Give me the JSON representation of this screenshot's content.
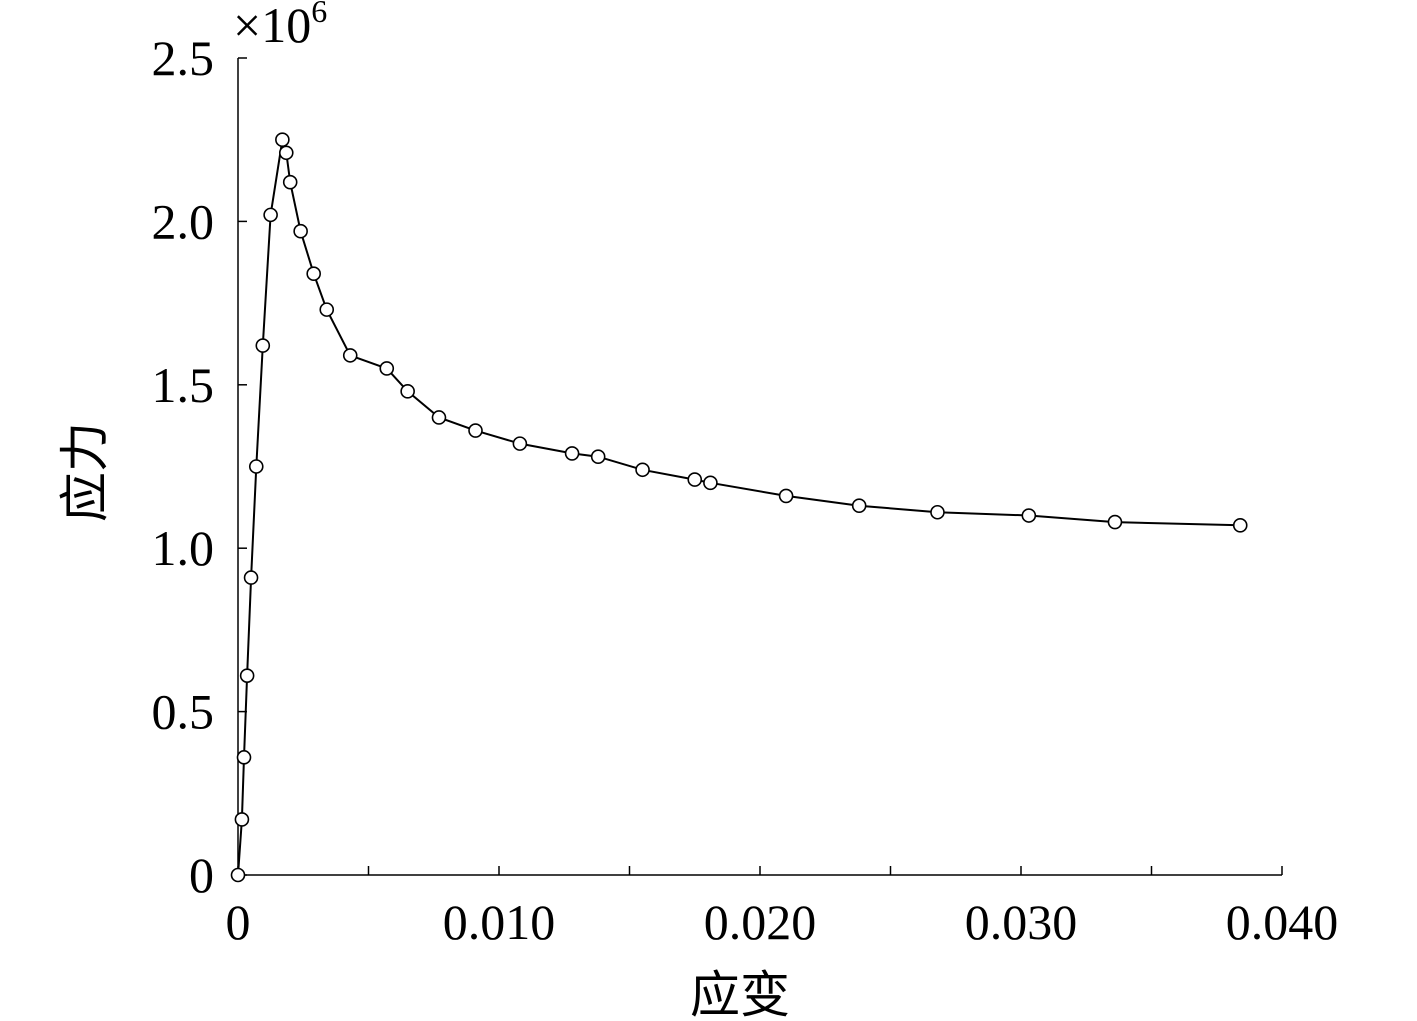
{
  "chart_data": {
    "type": "line",
    "title": "",
    "xlabel": "应变",
    "ylabel": "应力",
    "xlim": [
      0,
      0.04
    ],
    "ylim": [
      0,
      2.5
    ],
    "y_multiplier": "×10",
    "y_multiplier_exponent": "6",
    "x_ticks": [
      0,
      0.005,
      0.01,
      0.015,
      0.02,
      0.025,
      0.03,
      0.035,
      0.04
    ],
    "x_tick_labels": [
      {
        "value": 0,
        "label": "0"
      },
      {
        "value": 0.01,
        "label": "0.010"
      },
      {
        "value": 0.02,
        "label": "0.020"
      },
      {
        "value": 0.03,
        "label": "0.030"
      },
      {
        "value": 0.04,
        "label": "0.040"
      }
    ],
    "y_ticks": [
      0,
      0.5,
      1.0,
      1.5,
      2.0,
      2.5
    ],
    "y_tick_labels": [
      {
        "value": 0,
        "label": "0"
      },
      {
        "value": 0.5,
        "label": "0.5"
      },
      {
        "value": 1.0,
        "label": "1.0"
      },
      {
        "value": 1.5,
        "label": "1.5"
      },
      {
        "value": 2.0,
        "label": "2.0"
      },
      {
        "value": 2.5,
        "label": "2.5"
      }
    ],
    "grid": false,
    "marker": "open-circle",
    "line_color": "#000000",
    "series": [
      {
        "x": [
          0,
          0.00015,
          0.00023,
          0.00035,
          0.0005,
          0.0007,
          0.00095,
          0.00125,
          0.0017,
          0.00185,
          0.002,
          0.0024,
          0.0029,
          0.0034,
          0.0043,
          0.0057,
          0.0065,
          0.0077,
          0.0091,
          0.0108,
          0.0128,
          0.0138,
          0.0155,
          0.0175,
          0.0181,
          0.021,
          0.0238,
          0.0268,
          0.0303,
          0.0336,
          0.0384
        ],
        "y": [
          0,
          0.17,
          0.36,
          0.61,
          0.91,
          1.25,
          1.62,
          2.02,
          2.25,
          2.21,
          2.12,
          1.97,
          1.84,
          1.73,
          1.59,
          1.55,
          1.48,
          1.4,
          1.36,
          1.32,
          1.29,
          1.28,
          1.24,
          1.21,
          1.2,
          1.16,
          1.13,
          1.11,
          1.1,
          1.08,
          1.07
        ]
      }
    ]
  }
}
